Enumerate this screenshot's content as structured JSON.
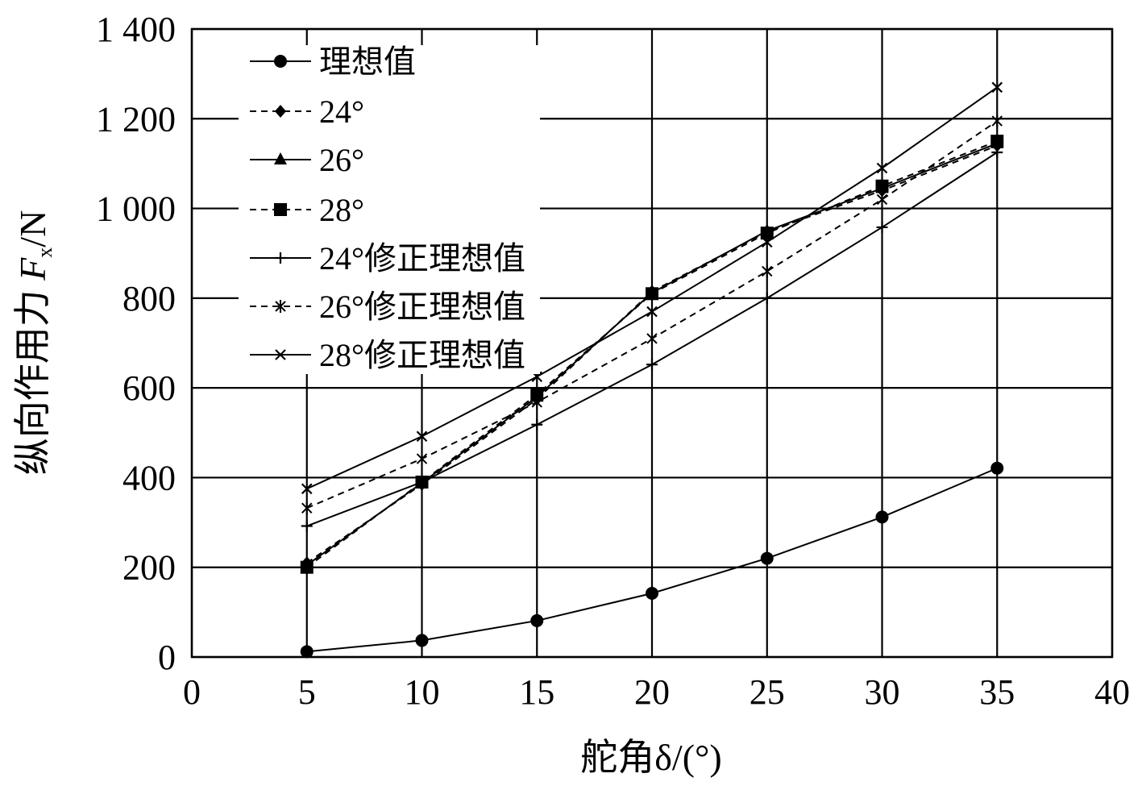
{
  "chart_data": {
    "type": "line",
    "title": "",
    "xlabel": "舵角δ/(°)",
    "ylabel_prefix": "纵向作用力 ",
    "ylabel_var": "F",
    "ylabel_sub": "x",
    "ylabel_unit": "/N",
    "xlim": [
      0,
      40
    ],
    "ylim": [
      0,
      1400
    ],
    "xticks": [
      0,
      5,
      10,
      15,
      20,
      25,
      30,
      35,
      40
    ],
    "yticks": [
      0,
      200,
      400,
      600,
      800,
      1000,
      1200,
      1400
    ],
    "xtick_labels": [
      "0",
      "5",
      "10",
      "15",
      "20",
      "25",
      "30",
      "35",
      "40"
    ],
    "ytick_labels": [
      "0",
      "200",
      "400",
      "600",
      "800",
      "1 000",
      "1 200",
      "1 400"
    ],
    "grid": true,
    "legend_position": "top-left",
    "x": [
      5,
      10,
      15,
      20,
      25,
      30,
      35
    ],
    "series": [
      {
        "name": "理想值",
        "marker": "circle",
        "dash": "solid",
        "values": [
          12,
          37,
          81,
          142,
          220,
          312,
          421
        ]
      },
      {
        "name": "24°",
        "marker": "diamond",
        "dash": "dashed",
        "values": [
          210,
          385,
          575,
          815,
          948,
          1040,
          1140
        ]
      },
      {
        "name": "26°",
        "marker": "triangle",
        "dash": "solid",
        "values": [
          205,
          388,
          580,
          812,
          950,
          1045,
          1145
        ]
      },
      {
        "name": "28°",
        "marker": "square",
        "dash": "dashed",
        "values": [
          200,
          390,
          585,
          810,
          945,
          1050,
          1150
        ]
      },
      {
        "name": "24°修正理想值",
        "marker": "plus",
        "dash": "solid",
        "values": [
          292,
          390,
          518,
          652,
          800,
          958,
          1125
        ]
      },
      {
        "name": "26°修正理想值",
        "marker": "asterisk",
        "dash": "dashed",
        "values": [
          332,
          442,
          568,
          710,
          860,
          1020,
          1195
        ]
      },
      {
        "name": "28°修正理想值",
        "marker": "x",
        "dash": "solid",
        "values": [
          375,
          492,
          625,
          770,
          925,
          1090,
          1270
        ]
      }
    ]
  }
}
